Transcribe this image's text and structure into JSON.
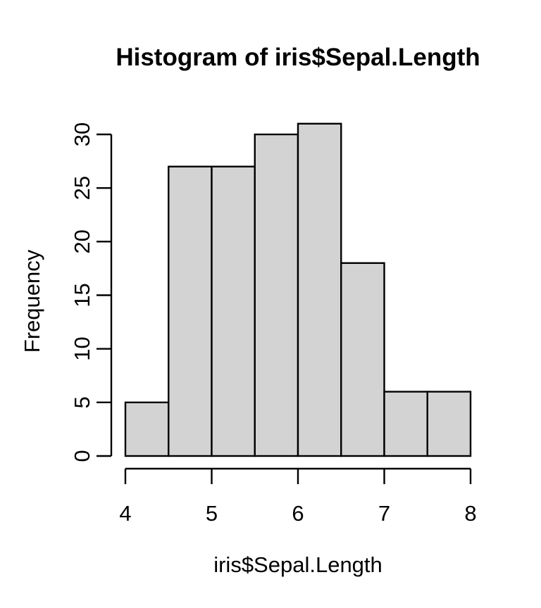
{
  "chart_data": {
    "type": "bar",
    "subtype": "histogram",
    "title": "Histogram of iris$Sepal.Length",
    "xlabel": "iris$Sepal.Length",
    "ylabel": "Frequency",
    "bin_edges": [
      4,
      4.5,
      5,
      5.5,
      6,
      6.5,
      7,
      7.5,
      8
    ],
    "counts": [
      5,
      27,
      27,
      30,
      31,
      18,
      6,
      6
    ],
    "x_ticks": [
      4,
      5,
      6,
      7,
      8
    ],
    "y_ticks": [
      0,
      5,
      10,
      15,
      20,
      25,
      30
    ],
    "xlim": [
      4,
      8
    ],
    "ylim": [
      0,
      31
    ],
    "grid": false,
    "legend": "none",
    "colors": {
      "bar_fill": "#d3d3d3",
      "bar_stroke": "#000000",
      "axis": "#000000",
      "text": "#000000",
      "background": "#ffffff"
    }
  }
}
